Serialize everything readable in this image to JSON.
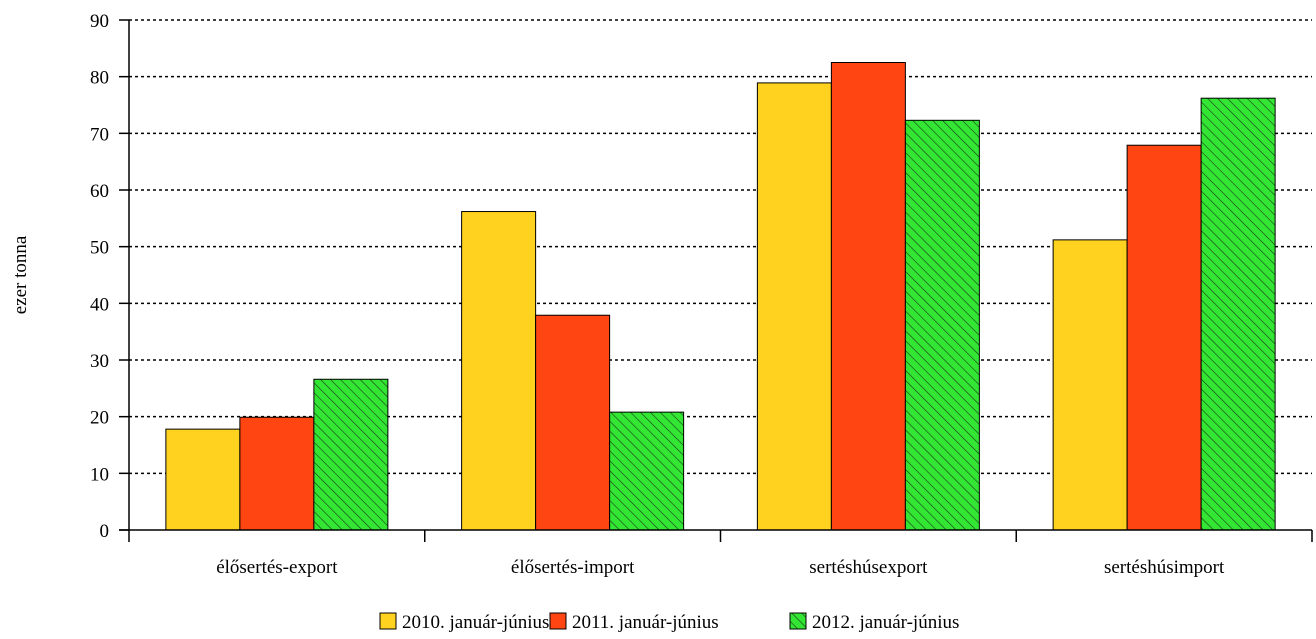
{
  "chart_data": {
    "type": "bar",
    "ylabel": "ezer tonna",
    "ylim": [
      0,
      90
    ],
    "yticks": [
      0,
      10,
      20,
      30,
      40,
      50,
      60,
      70,
      80,
      90
    ],
    "grid": true,
    "legend_position": "bottom",
    "categories": [
      "élősertés-export",
      "élősertés-import",
      "sertéshúsexport",
      "sertéshúsimport"
    ],
    "series": [
      {
        "name": "2010. január-június",
        "color": "#FFD21F",
        "pattern": "solid",
        "values": [
          17.8,
          56.2,
          78.9,
          51.2
        ]
      },
      {
        "name": "2011. január-június",
        "color": "#FF4512",
        "pattern": "solid",
        "values": [
          19.9,
          37.9,
          82.5,
          67.9
        ]
      },
      {
        "name": "2012. január-június",
        "color": "#33E633",
        "pattern": "diagonal-hatch",
        "values": [
          26.6,
          20.8,
          72.3,
          76.2
        ]
      }
    ]
  }
}
